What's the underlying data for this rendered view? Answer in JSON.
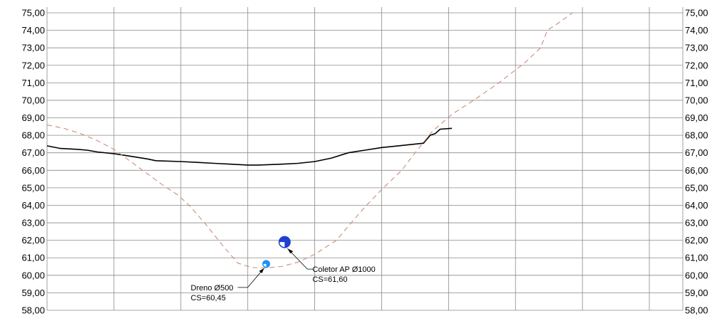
{
  "chart_data": {
    "type": "line",
    "ylim": [
      58,
      75
    ],
    "xlim": [
      0,
      38
    ],
    "y_ticks": [
      "58,00",
      "59,00",
      "60,00",
      "61,00",
      "62,00",
      "63,00",
      "64,00",
      "65,00",
      "66,00",
      "67,00",
      "68,00",
      "69,00",
      "70,00",
      "71,00",
      "72,00",
      "73,00",
      "74,00",
      "75,00"
    ],
    "x_gridlines": [
      4,
      8,
      12,
      16,
      20,
      24,
      28,
      32,
      36
    ],
    "grid": true,
    "series": [
      {
        "style": "solid",
        "color": "#000000",
        "points": [
          [
            0,
            67.4
          ],
          [
            0.8,
            67.25
          ],
          [
            1.8,
            67.2
          ],
          [
            2.4,
            67.15
          ],
          [
            3.0,
            67.05
          ],
          [
            4.0,
            66.95
          ],
          [
            5.0,
            66.8
          ],
          [
            6.0,
            66.65
          ],
          [
            6.5,
            66.55
          ],
          [
            8.0,
            66.5
          ],
          [
            9.0,
            66.45
          ],
          [
            10.0,
            66.4
          ],
          [
            11.0,
            66.35
          ],
          [
            12.0,
            66.3
          ],
          [
            12.6,
            66.3
          ],
          [
            14.0,
            66.35
          ],
          [
            15.0,
            66.4
          ],
          [
            16.0,
            66.5
          ],
          [
            17.0,
            66.7
          ],
          [
            18.0,
            67.0
          ],
          [
            19.0,
            67.15
          ],
          [
            20.0,
            67.3
          ],
          [
            21.0,
            67.4
          ],
          [
            22.0,
            67.5
          ],
          [
            22.5,
            67.55
          ],
          [
            22.9,
            68.0
          ],
          [
            23.2,
            68.1
          ],
          [
            23.5,
            68.35
          ],
          [
            24.2,
            68.4
          ]
        ]
      },
      {
        "style": "dashed",
        "color": "#c8907a",
        "points": [
          [
            0,
            68.6
          ],
          [
            1.0,
            68.4
          ],
          [
            2.0,
            68.1
          ],
          [
            3.0,
            67.7
          ],
          [
            4.0,
            67.2
          ],
          [
            5.0,
            66.5
          ],
          [
            6.0,
            65.8
          ],
          [
            7.0,
            65.1
          ],
          [
            7.8,
            64.6
          ],
          [
            8.5,
            64.0
          ],
          [
            9.5,
            62.9
          ],
          [
            10.5,
            61.7
          ],
          [
            11.4,
            60.7
          ],
          [
            12.2,
            60.45
          ],
          [
            13.0,
            60.42
          ],
          [
            14.0,
            60.5
          ],
          [
            15.0,
            60.75
          ],
          [
            16.0,
            61.2
          ],
          [
            17.3,
            62.0
          ],
          [
            18.0,
            62.8
          ],
          [
            19.0,
            63.9
          ],
          [
            20.0,
            64.9
          ],
          [
            21.2,
            66.0
          ],
          [
            22.0,
            67.0
          ],
          [
            23.0,
            68.2
          ],
          [
            24.2,
            69.2
          ],
          [
            25.5,
            70.0
          ],
          [
            27.0,
            71.0
          ],
          [
            28.5,
            72.1
          ],
          [
            29.5,
            73.0
          ],
          [
            29.9,
            74.0
          ],
          [
            30.7,
            74.5
          ],
          [
            31.4,
            75.0
          ]
        ]
      }
    ],
    "pipes": [
      {
        "name": "dreno",
        "x": 13.1,
        "y": 60.65,
        "diameter_label": "Dreno Ø500",
        "cs_label": "CS=60,45",
        "color": "#1e90ff"
      },
      {
        "name": "coletor",
        "x": 14.2,
        "y": 61.9,
        "diameter_label": "Coletor AP Ø1000",
        "cs_label": "CS=61,60",
        "color": "#1f3fd0"
      }
    ]
  }
}
